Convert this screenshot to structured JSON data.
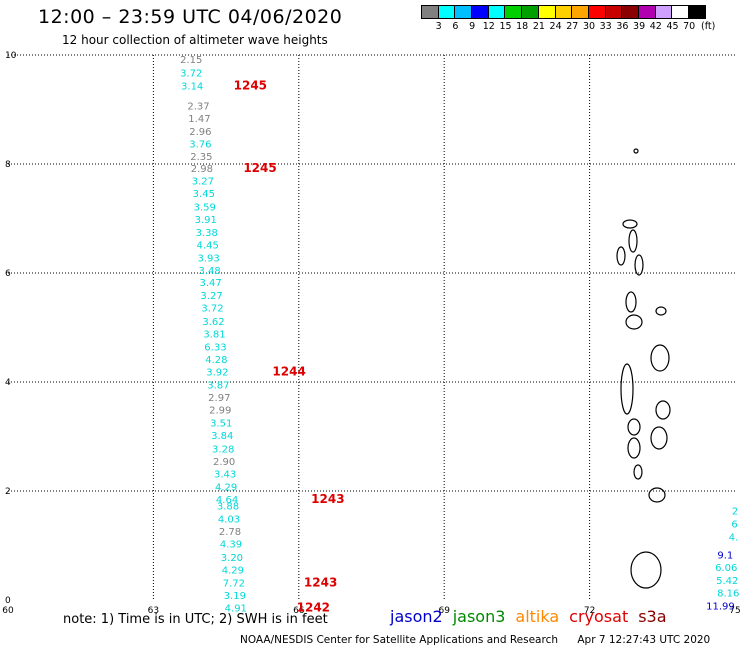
{
  "header": {
    "title": "12:00 – 23:59 UTC 04/06/2020",
    "subtitle": "12 hour collection of altimeter wave heights"
  },
  "legend": {
    "unit": "(ft)",
    "colors": [
      "#808080",
      "#00ffff",
      "#00bfff",
      "#0000ff",
      "#00ffff",
      "#00d000",
      "#00a000",
      "#ffff00",
      "#ffd000",
      "#ffa500",
      "#ff0000",
      "#c80000",
      "#8b0000",
      "#b000b0",
      "#d0a0ff",
      "#ffffff",
      "#000000"
    ],
    "labels": [
      "3",
      "6",
      "9",
      "12",
      "15",
      "18",
      "21",
      "24",
      "27",
      "30",
      "33",
      "36",
      "39",
      "42",
      "45",
      "70"
    ]
  },
  "map": {
    "x_ticks": [
      "60",
      "63",
      "66",
      "69",
      "72",
      "75"
    ],
    "y_ticks": [
      "0",
      "2",
      "4",
      "6",
      "8",
      "10"
    ],
    "track_colors": {
      "gray": "#808080",
      "cyan": "#00d8d8",
      "blue": "#0000cc",
      "red": "#dd0000"
    },
    "observations": [
      {
        "v": "2.15",
        "lon": 63.78,
        "lat": 9.85,
        "c": "gray"
      },
      {
        "v": "3.72",
        "lon": 63.78,
        "lat": 9.61,
        "c": "cyan"
      },
      {
        "v": "3.14",
        "lon": 63.8,
        "lat": 9.37,
        "c": "cyan"
      },
      {
        "v": "2.37",
        "lon": 63.93,
        "lat": 9.0,
        "c": "gray"
      },
      {
        "v": "1.47",
        "lon": 63.95,
        "lat": 8.77,
        "c": "gray"
      },
      {
        "v": "2.96",
        "lon": 63.97,
        "lat": 8.53,
        "c": "gray"
      },
      {
        "v": "3.76",
        "lon": 63.97,
        "lat": 8.3,
        "c": "cyan"
      },
      {
        "v": "2.35",
        "lon": 63.99,
        "lat": 8.07,
        "c": "gray"
      },
      {
        "v": "2.98",
        "lon": 64.0,
        "lat": 7.85,
        "c": "gray"
      },
      {
        "v": "3.27",
        "lon": 64.02,
        "lat": 7.62,
        "c": "cyan"
      },
      {
        "v": "3.45",
        "lon": 64.04,
        "lat": 7.39,
        "c": "cyan"
      },
      {
        "v": "3.59",
        "lon": 64.06,
        "lat": 7.15,
        "c": "cyan"
      },
      {
        "v": "3.91",
        "lon": 64.08,
        "lat": 6.92,
        "c": "cyan"
      },
      {
        "v": "3.38",
        "lon": 64.1,
        "lat": 6.68,
        "c": "cyan"
      },
      {
        "v": "4.45",
        "lon": 64.12,
        "lat": 6.45,
        "c": "cyan"
      },
      {
        "v": "3.93",
        "lon": 64.14,
        "lat": 6.21,
        "c": "cyan"
      },
      {
        "v": "3.48",
        "lon": 64.16,
        "lat": 5.98,
        "c": "cyan"
      },
      {
        "v": "3.47",
        "lon": 64.18,
        "lat": 5.76,
        "c": "cyan"
      },
      {
        "v": "3.27",
        "lon": 64.2,
        "lat": 5.52,
        "c": "cyan"
      },
      {
        "v": "3.72",
        "lon": 64.22,
        "lat": 5.29,
        "c": "cyan"
      },
      {
        "v": "3.62",
        "lon": 64.24,
        "lat": 5.05,
        "c": "cyan"
      },
      {
        "v": "3.81",
        "lon": 64.26,
        "lat": 4.82,
        "c": "cyan"
      },
      {
        "v": "6.33",
        "lon": 64.28,
        "lat": 4.58,
        "c": "cyan"
      },
      {
        "v": "4.28",
        "lon": 64.3,
        "lat": 4.35,
        "c": "cyan"
      },
      {
        "v": "3.92",
        "lon": 64.32,
        "lat": 4.12,
        "c": "cyan"
      },
      {
        "v": "3.87",
        "lon": 64.34,
        "lat": 3.88,
        "c": "cyan"
      },
      {
        "v": "2.97",
        "lon": 64.36,
        "lat": 3.65,
        "c": "gray"
      },
      {
        "v": "2.99",
        "lon": 64.38,
        "lat": 3.42,
        "c": "gray"
      },
      {
        "v": "3.51",
        "lon": 64.4,
        "lat": 3.18,
        "c": "cyan"
      },
      {
        "v": "3.84",
        "lon": 64.42,
        "lat": 2.95,
        "c": "cyan"
      },
      {
        "v": "3.28",
        "lon": 64.44,
        "lat": 2.71,
        "c": "cyan"
      },
      {
        "v": "2.90",
        "lon": 64.46,
        "lat": 2.48,
        "c": "gray"
      },
      {
        "v": "3.43",
        "lon": 64.48,
        "lat": 2.25,
        "c": "cyan"
      },
      {
        "v": "4.29",
        "lon": 64.5,
        "lat": 2.01,
        "c": "cyan"
      },
      {
        "v": "4.64",
        "lon": 64.52,
        "lat": 1.78,
        "c": "cyan"
      },
      {
        "v": "3.88",
        "lon": 64.54,
        "lat": 1.66,
        "c": "cyan"
      },
      {
        "v": "4.03",
        "lon": 64.56,
        "lat": 1.42,
        "c": "cyan"
      },
      {
        "v": "2.78",
        "lon": 64.58,
        "lat": 1.19,
        "c": "gray"
      },
      {
        "v": "4.39",
        "lon": 64.6,
        "lat": 0.96,
        "c": "cyan"
      },
      {
        "v": "3.20",
        "lon": 64.62,
        "lat": 0.72,
        "c": "cyan"
      },
      {
        "v": "4.29",
        "lon": 64.64,
        "lat": 0.49,
        "c": "cyan"
      },
      {
        "v": "7.72",
        "lon": 64.66,
        "lat": 0.25,
        "c": "cyan"
      },
      {
        "v": "3.19",
        "lon": 64.68,
        "lat": 0.02,
        "c": "cyan"
      },
      {
        "v": "4.91",
        "lon": 64.7,
        "lat": -0.21,
        "c": "cyan"
      },
      {
        "v": "2",
        "lon": 75.0,
        "lat": 1.57,
        "c": "cyan"
      },
      {
        "v": "6",
        "lon": 74.99,
        "lat": 1.33,
        "c": "cyan"
      },
      {
        "v": "4.",
        "lon": 74.97,
        "lat": 1.09,
        "c": "cyan"
      },
      {
        "v": "9.1",
        "lon": 74.8,
        "lat": 0.76,
        "c": "blue"
      },
      {
        "v": "6.06",
        "lon": 74.82,
        "lat": 0.53,
        "c": "cyan"
      },
      {
        "v": "5.42",
        "lon": 74.84,
        "lat": 0.29,
        "c": "cyan"
      },
      {
        "v": "8.16",
        "lon": 74.86,
        "lat": 0.06,
        "c": "cyan"
      },
      {
        "v": "11.99",
        "lon": 74.7,
        "lat": -0.17,
        "c": "blue"
      }
    ],
    "pass_labels": [
      {
        "t": "1245",
        "lon": 65.0,
        "lat": 9.37
      },
      {
        "t": "1245",
        "lon": 65.2,
        "lat": 7.85
      },
      {
        "t": "1244",
        "lon": 65.8,
        "lat": 4.12
      },
      {
        "t": "1243",
        "lon": 66.6,
        "lat": 1.78
      },
      {
        "t": "1243",
        "lon": 66.45,
        "lat": 0.25
      },
      {
        "t": "1242",
        "lon": 66.3,
        "lat": -0.21
      }
    ]
  },
  "note": "note:  1) Time is in UTC;  2) SWH is in feet",
  "satellites": [
    {
      "name": "jason2",
      "color": "#0000cc"
    },
    {
      "name": "jason3",
      "color": "#008800"
    },
    {
      "name": "altika",
      "color": "#ff8800"
    },
    {
      "name": "cryosat",
      "color": "#dd0000"
    },
    {
      "name": "s3a",
      "color": "#880000"
    }
  ],
  "footer": {
    "source": "NOAA/NESDIS Center for Satellite Applications and Research",
    "timestamp": "Apr  7 12:27:43 UTC 2020"
  }
}
